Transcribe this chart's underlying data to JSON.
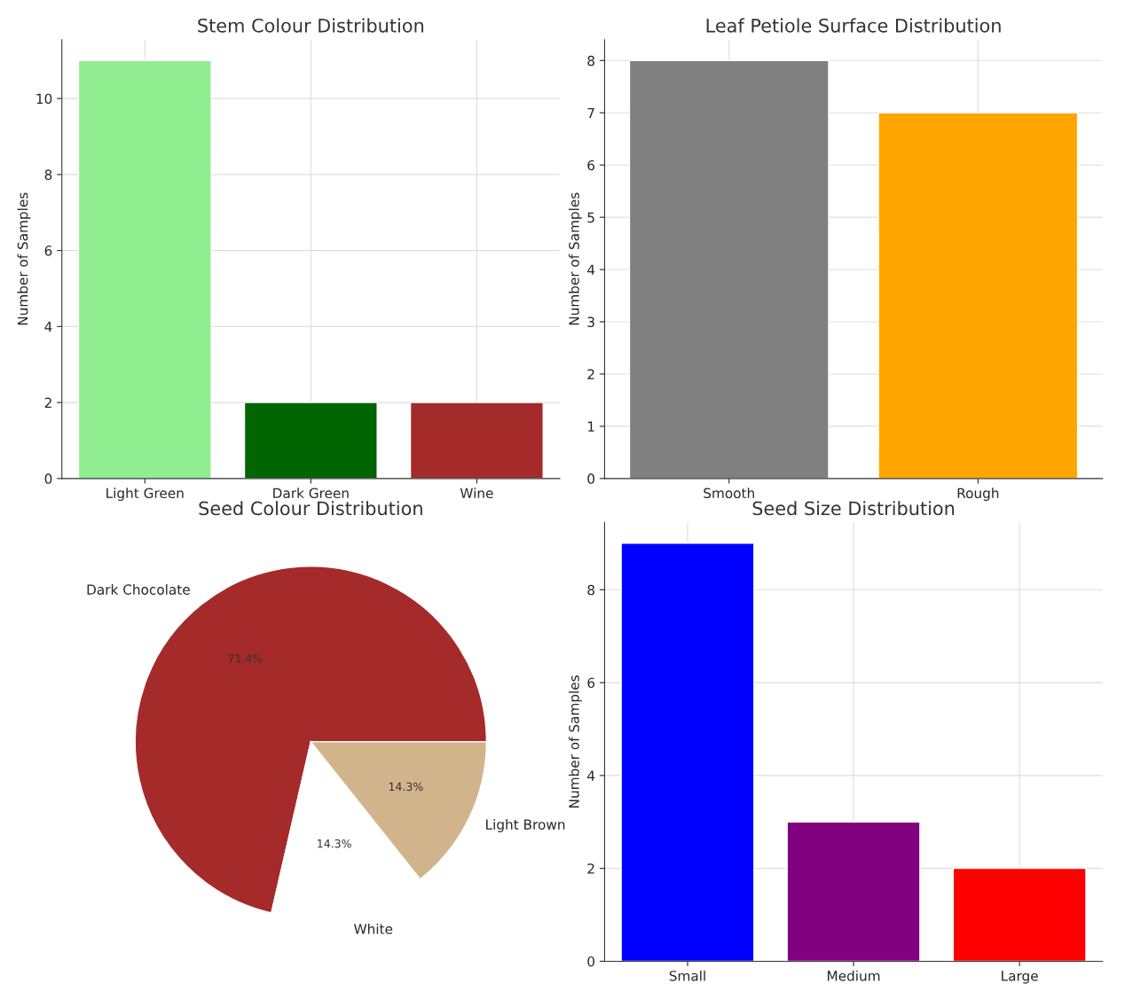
{
  "chart_data": [
    {
      "type": "bar",
      "title": "Stem Colour Distribution",
      "ylabel": "Number of Samples",
      "categories": [
        "Light Green",
        "Dark Green",
        "Wine"
      ],
      "values": [
        11,
        2,
        2
      ],
      "colors": [
        "#90ee90",
        "#006400",
        "#a52a2a"
      ],
      "ylim": [
        0,
        11.55
      ],
      "yticks": [
        0,
        2,
        4,
        6,
        8,
        10
      ],
      "grid": true
    },
    {
      "type": "bar",
      "title": "Leaf Petiole Surface Distribution",
      "ylabel": "Number of Samples",
      "categories": [
        "Smooth",
        "Rough"
      ],
      "values": [
        8,
        7
      ],
      "colors": [
        "#808080",
        "#ffa500"
      ],
      "ylim": [
        0,
        8.4
      ],
      "yticks": [
        0,
        1,
        2,
        3,
        4,
        5,
        6,
        7,
        8
      ],
      "grid": true
    },
    {
      "type": "pie",
      "title": "Seed Colour Distribution",
      "categories": [
        "Dark Chocolate",
        "White",
        "Light Brown"
      ],
      "values": [
        71.4,
        14.3,
        14.3
      ],
      "colors": [
        "#a52a2a",
        "#ffffff",
        "#d2b48c"
      ],
      "value_labels": [
        "71.4%",
        "14.3%",
        "14.3%"
      ]
    },
    {
      "type": "bar",
      "title": "Seed Size Distribution",
      "ylabel": "Number of Samples",
      "categories": [
        "Small",
        "Medium",
        "Large"
      ],
      "values": [
        9,
        3,
        2
      ],
      "colors": [
        "#0000ff",
        "#800080",
        "#ff0000"
      ],
      "ylim": [
        0,
        9.45
      ],
      "yticks": [
        0,
        2,
        4,
        6,
        8
      ],
      "grid": true
    }
  ]
}
